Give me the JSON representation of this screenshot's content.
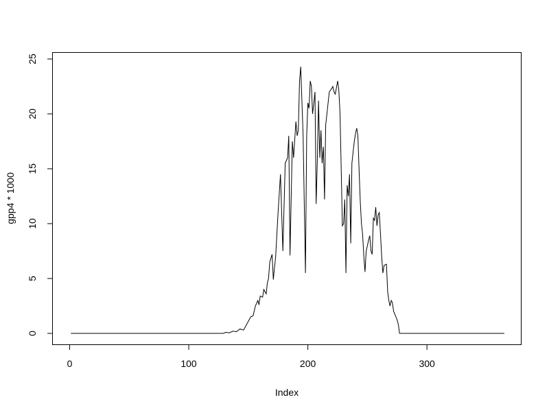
{
  "chart_data": {
    "type": "line",
    "title": "",
    "xlabel": "Index",
    "ylabel": "gpp4 * 1000",
    "xlim": [
      1,
      365
    ],
    "ylim": [
      0,
      25
    ],
    "xticks": [
      0,
      100,
      200,
      300
    ],
    "yticks": [
      0,
      5,
      10,
      15,
      20,
      25
    ],
    "grid": false,
    "color": "#000000",
    "points": [
      [
        1,
        0
      ],
      [
        129,
        0
      ],
      [
        131,
        0.1
      ],
      [
        134,
        0.05
      ],
      [
        137,
        0.2
      ],
      [
        140,
        0.15
      ],
      [
        143,
        0.4
      ],
      [
        146,
        0.3
      ],
      [
        149,
        0.9
      ],
      [
        152,
        1.5
      ],
      [
        154,
        1.6
      ],
      [
        156,
        2.5
      ],
      [
        158,
        3.0
      ],
      [
        159,
        2.6
      ],
      [
        160,
        3.4
      ],
      [
        162,
        3.3
      ],
      [
        163,
        4.0
      ],
      [
        165,
        3.6
      ],
      [
        166,
        4.6
      ],
      [
        167,
        5.0
      ],
      [
        168,
        6.5
      ],
      [
        170,
        7.2
      ],
      [
        171,
        4.9
      ],
      [
        172,
        6.0
      ],
      [
        173,
        7.0
      ],
      [
        175,
        11
      ],
      [
        177,
        14.5
      ],
      [
        179,
        7.5
      ],
      [
        181,
        15.5
      ],
      [
        183,
        16.0
      ],
      [
        184,
        18.0
      ],
      [
        185,
        7.1
      ],
      [
        187,
        17.5
      ],
      [
        188,
        16.0
      ],
      [
        190,
        19.3
      ],
      [
        191,
        18.0
      ],
      [
        192,
        18.5
      ],
      [
        193,
        23.0
      ],
      [
        194,
        24.3
      ],
      [
        196,
        18.0
      ],
      [
        198,
        5.5
      ],
      [
        199,
        18.0
      ],
      [
        200,
        21.0
      ],
      [
        201,
        20.5
      ],
      [
        202,
        23.0
      ],
      [
        203,
        22.5
      ],
      [
        204,
        20.0
      ],
      [
        205,
        21.0
      ],
      [
        206,
        22.0
      ],
      [
        207,
        11.8
      ],
      [
        208,
        16.0
      ],
      [
        209,
        21.2
      ],
      [
        210,
        16.0
      ],
      [
        211,
        18.5
      ],
      [
        212,
        15.5
      ],
      [
        213,
        17.0
      ],
      [
        214,
        12.2
      ],
      [
        215,
        19.0
      ],
      [
        216,
        20.0
      ],
      [
        218,
        22.0
      ],
      [
        220,
        22.3
      ],
      [
        221,
        22.5
      ],
      [
        222,
        22.0
      ],
      [
        223,
        21.8
      ],
      [
        224,
        22.4
      ],
      [
        225,
        23.0
      ],
      [
        226,
        22.2
      ],
      [
        227,
        20.0
      ],
      [
        228,
        15.0
      ],
      [
        229,
        9.8
      ],
      [
        230,
        10.0
      ],
      [
        231,
        12.2
      ],
      [
        232,
        5.5
      ],
      [
        233,
        13.5
      ],
      [
        234,
        12.5
      ],
      [
        235,
        14.5
      ],
      [
        236,
        8.2
      ],
      [
        237,
        15.5
      ],
      [
        238,
        16.5
      ],
      [
        239,
        17.5
      ],
      [
        240,
        18.2
      ],
      [
        241,
        18.7
      ],
      [
        242,
        18.0
      ],
      [
        243,
        15.0
      ],
      [
        244,
        12.0
      ],
      [
        245,
        10.0
      ],
      [
        246,
        9.0
      ],
      [
        247,
        7.0
      ],
      [
        248,
        5.6
      ],
      [
        249,
        7.5
      ],
      [
        250,
        8.0
      ],
      [
        251,
        8.5
      ],
      [
        252,
        8.9
      ],
      [
        253,
        7.5
      ],
      [
        254,
        7.2
      ],
      [
        255,
        10.5
      ],
      [
        256,
        10.3
      ],
      [
        257,
        11.5
      ],
      [
        258,
        9.8
      ],
      [
        259,
        10.8
      ],
      [
        260,
        11.0
      ],
      [
        261,
        9.0
      ],
      [
        262,
        7.0
      ],
      [
        263,
        5.5
      ],
      [
        264,
        6.2
      ],
      [
        266,
        6.3
      ],
      [
        267,
        3.8
      ],
      [
        268,
        3.0
      ],
      [
        269,
        2.5
      ],
      [
        270,
        3.0
      ],
      [
        271,
        2.8
      ],
      [
        272,
        2.0
      ],
      [
        274,
        1.5
      ],
      [
        275,
        1.2
      ],
      [
        276,
        0.8
      ],
      [
        277,
        0
      ],
      [
        365,
        0
      ]
    ]
  }
}
